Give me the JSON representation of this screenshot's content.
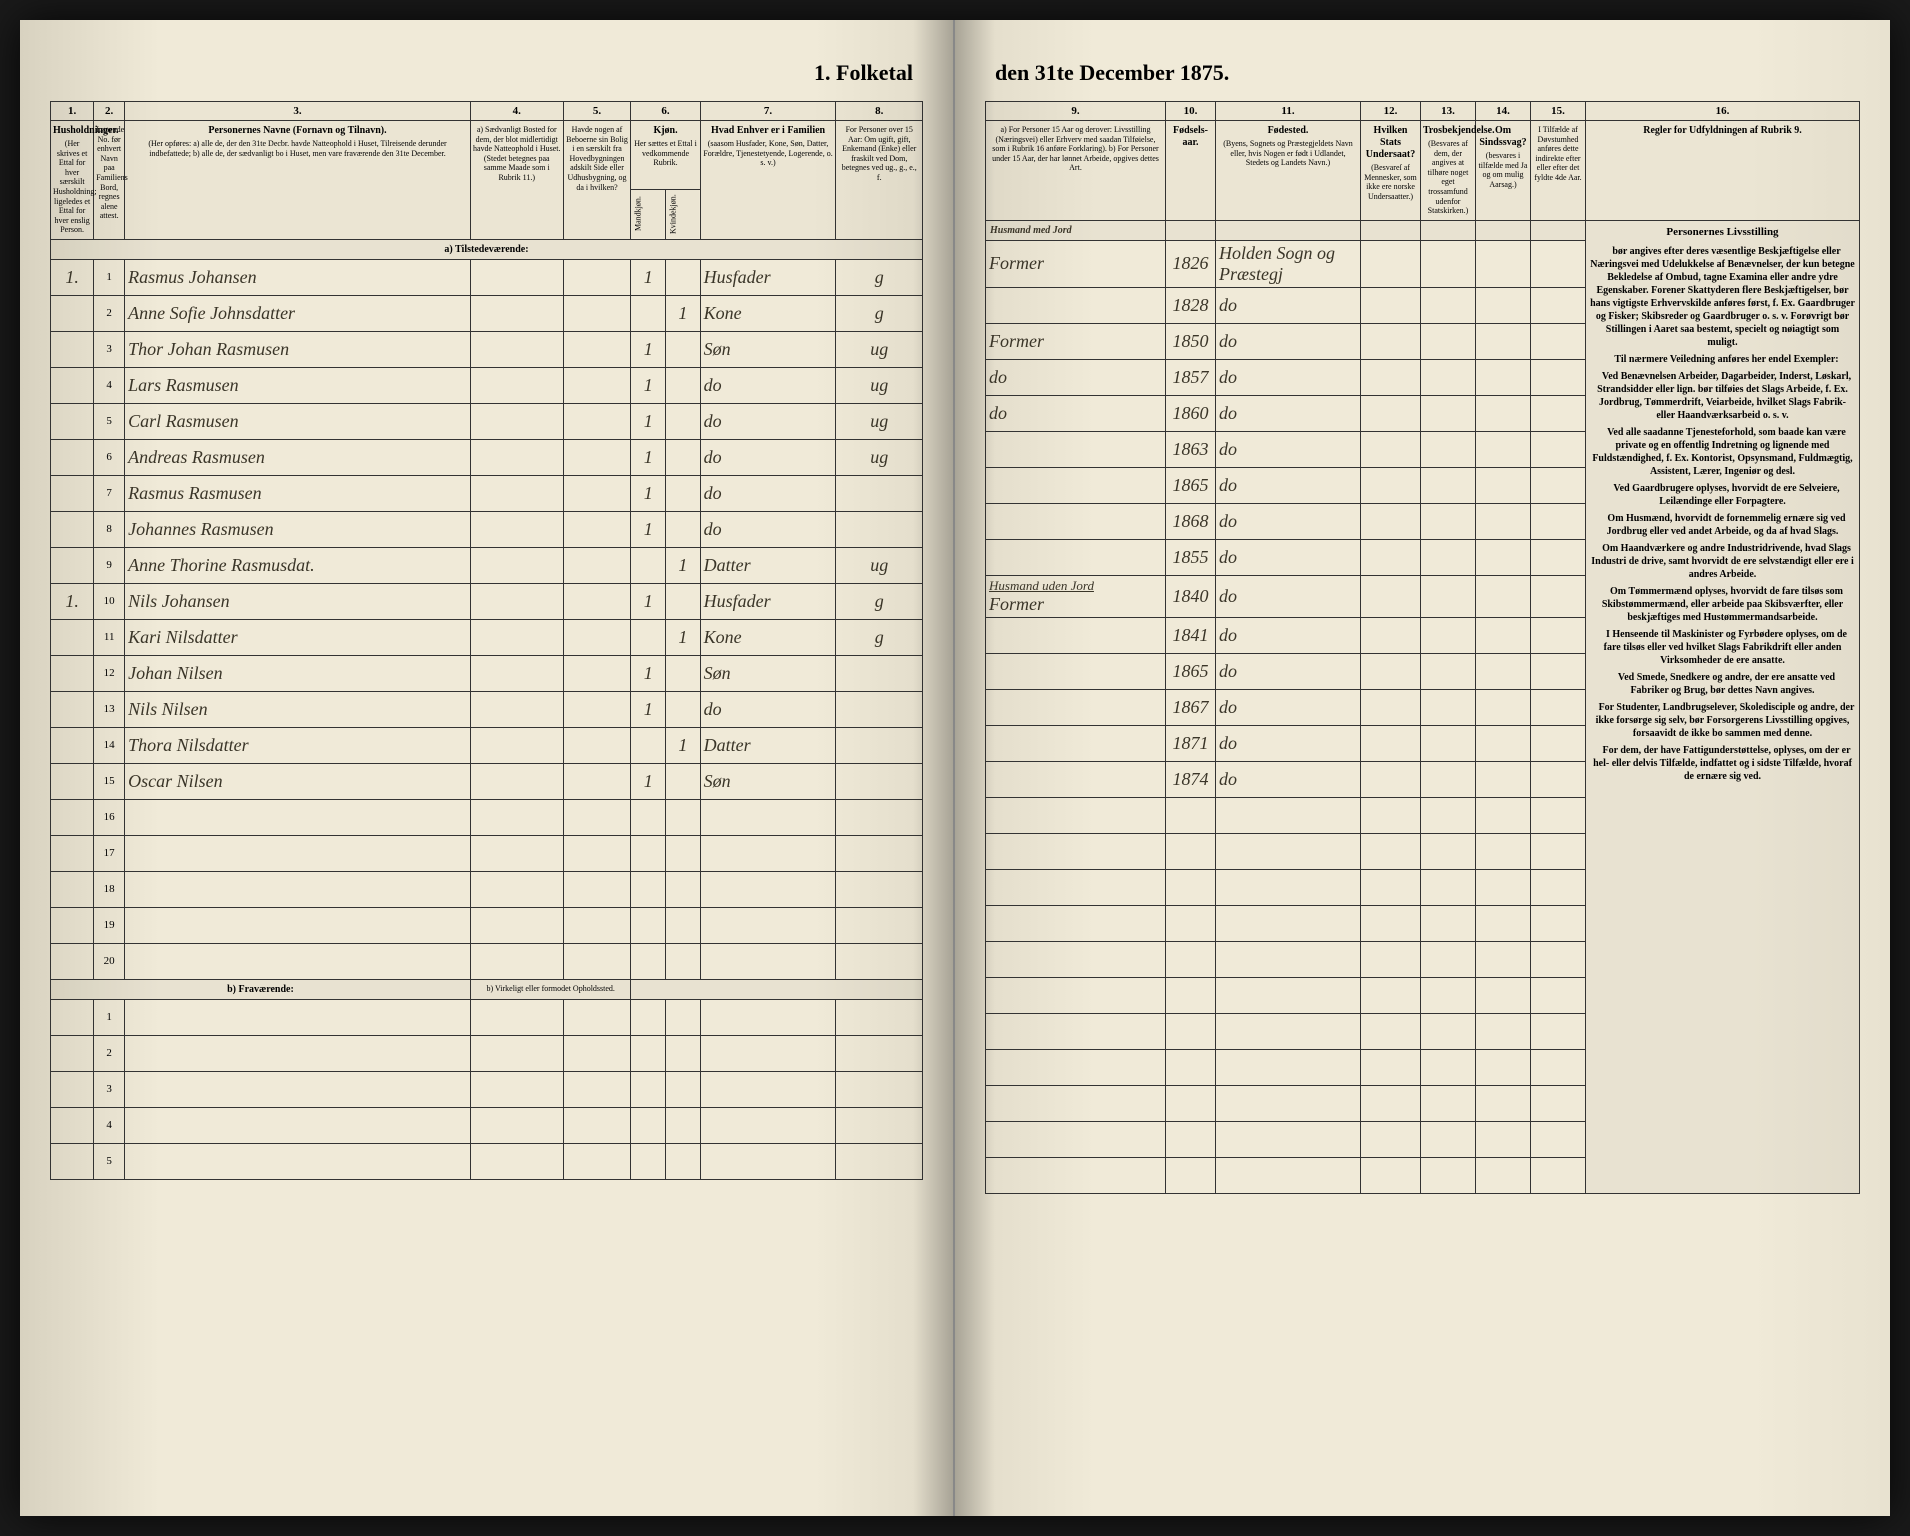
{
  "title_left": "1. Folketal",
  "title_right": "den 31te December 1875.",
  "columns": {
    "c1": "1.",
    "c2": "2.",
    "c3": "3.",
    "c4": "4.",
    "c5": "5.",
    "c6": "6.",
    "c7": "7.",
    "c8": "8.",
    "c9": "9.",
    "c10": "10.",
    "c11": "11.",
    "c12": "12.",
    "c13": "13.",
    "c14": "14.",
    "c15": "15.",
    "c16": "16."
  },
  "headers": {
    "h1": {
      "title": "Husholdninger.",
      "text": "(Her skrives et Ettal for hver særskilt Husholdning; ligeledes et Ettal for hver enslig Person."
    },
    "h2": {
      "text": "Løpende No. før enhvert Navn paa Familiens Bord, regnes alene attest."
    },
    "h3": {
      "title": "Personernes Navne (Fornavn og Tilnavn).",
      "text": "(Her opføres: a) alle de, der den 31te Decbr. havde Natteophold i Huset, Tilreisende derunder indbefattede; b) alle de, der sædvanligt bo i Huset, men vare fraværende den 31te December."
    },
    "h4": {
      "text": "a) Sædvanligt Bosted for dem, der blot midlertidigt havde Natteophold i Huset. (Stedet betegnes paa samme Maade som i Rubrik 11.)"
    },
    "h5": {
      "text": "Havde nogen af Beboerne sin Bolig i en særskilt fra Hovedbygningen adskilt Side eller Udhusbygning, og da i hvilken?"
    },
    "h6": {
      "title": "Kjøn.",
      "text": "Her sættes et Ettal i vedkommende Rubrik."
    },
    "h6a": "Mandkjøn.",
    "h6b": "Kvindekjøn.",
    "h7": {
      "title": "Hvad Enhver er i Familien",
      "text": "(saasom Husfader, Kone, Søn, Datter, Forældre, Tjenestetyende, Logerende, o. s. v.)"
    },
    "h8": {
      "text": "For Personer over 15 Aar: Om ugift, gift, Enkemand (Enke) eller fraskilt ved Dom, betegnes ved ug., g., e., f."
    },
    "h9": {
      "text": "a) For Personer 15 Aar og derover: Livsstilling (Næringsvei) eller Erhverv med saadan Tilføielse, som i Rubrik 16 anføre Forklaring). b) For Personer under 15 Aar, der har lønnet Arbeide, opgives dettes Art."
    },
    "h10": {
      "title": "Fødsels-aar."
    },
    "h11": {
      "title": "Fødested.",
      "text": "(Byens, Sognets og Præstegjeldets Navn eller, hvis Nogen er født i Udlandet, Stedets og Landets Navn.)"
    },
    "h12": {
      "title": "Hvilken Stats Undersaat?",
      "text": "(Besvareſ af Mennesker, som ikke ere norske Undersaatter.)"
    },
    "h13": {
      "title": "Trosbekjendelse.",
      "text": "(Besvares af dem, der angives at tilhøre noget eget trossamfund udenfor Statskirken.)"
    },
    "h14": {
      "title": "Om Sindssvag?",
      "text": "(besvares i tilfælde med Ja og om mulig Aarsag.)"
    },
    "h15": {
      "text": "I Tilfælde af Døvstumhed anføres dette indirekte efter eller efter det fyldte 4de Aar."
    },
    "h16": {
      "title": "Regler for Udfyldningen af Rubrik 9."
    }
  },
  "section_a": "a) Tilstedeværende:",
  "section_a_right": "Husmand med Jord",
  "section_b": "b) Fraværende:",
  "section_b_col4": "b) Virkeligt eller formodet Opholdssted.",
  "rows": [
    {
      "n": "1",
      "h": "1.",
      "name": "Rasmus Johansen",
      "mk": "1",
      "kk": "",
      "fam": "Husfader",
      "civ": "g",
      "occ": "Former",
      "year": "1826",
      "place": "Holden Sogn og Præstegj"
    },
    {
      "n": "2",
      "h": "",
      "name": "Anne Sofie Johnsdatter",
      "mk": "",
      "kk": "1",
      "fam": "Kone",
      "civ": "g",
      "occ": "",
      "year": "1828",
      "place": "do"
    },
    {
      "n": "3",
      "h": "",
      "name": "Thor Johan Rasmusen",
      "mk": "1",
      "kk": "",
      "fam": "Søn",
      "civ": "ug",
      "occ": "Former",
      "year": "1850",
      "place": "do"
    },
    {
      "n": "4",
      "h": "",
      "name": "Lars Rasmusen",
      "mk": "1",
      "kk": "",
      "fam": "do",
      "civ": "ug",
      "occ": "do",
      "year": "1857",
      "place": "do"
    },
    {
      "n": "5",
      "h": "",
      "name": "Carl Rasmusen",
      "mk": "1",
      "kk": "",
      "fam": "do",
      "civ": "ug",
      "occ": "do",
      "year": "1860",
      "place": "do"
    },
    {
      "n": "6",
      "h": "",
      "name": "Andreas Rasmusen",
      "mk": "1",
      "kk": "",
      "fam": "do",
      "civ": "ug",
      "occ": "",
      "year": "1863",
      "place": "do"
    },
    {
      "n": "7",
      "h": "",
      "name": "Rasmus Rasmusen",
      "mk": "1",
      "kk": "",
      "fam": "do",
      "civ": "",
      "occ": "",
      "year": "1865",
      "place": "do"
    },
    {
      "n": "8",
      "h": "",
      "name": "Johannes Rasmusen",
      "mk": "1",
      "kk": "",
      "fam": "do",
      "civ": "",
      "occ": "",
      "year": "1868",
      "place": "do"
    },
    {
      "n": "9",
      "h": "",
      "name": "Anne Thorine Rasmusdat.",
      "mk": "",
      "kk": "1",
      "fam": "Datter",
      "civ": "ug",
      "occ": "",
      "year": "1855",
      "place": "do"
    },
    {
      "n": "10",
      "h": "1.",
      "name": "Nils Johansen",
      "mk": "1",
      "kk": "",
      "fam": "Husfader",
      "civ": "g",
      "occ": "Former",
      "year": "1840",
      "place": "do",
      "header": "Husmand uden Jord"
    },
    {
      "n": "11",
      "h": "",
      "name": "Kari Nilsdatter",
      "mk": "",
      "kk": "1",
      "fam": "Kone",
      "civ": "g",
      "occ": "",
      "year": "1841",
      "place": "do"
    },
    {
      "n": "12",
      "h": "",
      "name": "Johan Nilsen",
      "mk": "1",
      "kk": "",
      "fam": "Søn",
      "civ": "",
      "occ": "",
      "year": "1865",
      "place": "do"
    },
    {
      "n": "13",
      "h": "",
      "name": "Nils Nilsen",
      "mk": "1",
      "kk": "",
      "fam": "do",
      "civ": "",
      "occ": "",
      "year": "1867",
      "place": "do"
    },
    {
      "n": "14",
      "h": "",
      "name": "Thora Nilsdatter",
      "mk": "",
      "kk": "1",
      "fam": "Datter",
      "civ": "",
      "occ": "",
      "year": "1871",
      "place": "do"
    },
    {
      "n": "15",
      "h": "",
      "name": "Oscar Nilsen",
      "mk": "1",
      "kk": "",
      "fam": "Søn",
      "civ": "",
      "occ": "",
      "year": "1874",
      "place": "do"
    }
  ],
  "empty_rows_a": [
    "16",
    "17",
    "18",
    "19",
    "20"
  ],
  "empty_rows_b": [
    "1",
    "2",
    "3",
    "4",
    "5"
  ],
  "instructions": {
    "title": "Personernes Livsstilling",
    "p1": "bør angives efter deres væsentlige Beskjæftigelse eller Næringsvei med Udelukkelse af Benævnelser, der kun betegne Bekledelse af Ombud, tagne Examina eller andre ydre Egenskaber. Forener Skattyderen flere Beskjæftigelser, bør hans vigtigste Erhvervskilde anføres først, f. Ex. Gaardbruger og Fisker; Skibsreder og Gaardbruger o. s. v. Forøvrigt bør Stillingen i Aaret saa bestemt, specielt og nøiagtigt som muligt.",
    "p2": "Til nærmere Veiledning anføres her endel Exempler:",
    "p3": "Ved Benævnelsen Arbeider, Dagarbeider, Inderst, Løskarl, Strandsidder eller lign. bør tilføies det Slags Arbeide, f. Ex. Jordbrug, Tømmerdrift, Veiarbeide, hvilket Slags Fabrik- eller Haandværksarbeid o. s. v.",
    "p4": "Ved alle saadanne Tjenesteforhold, som baade kan være private og en offentlig Indretning og lignende med Fuldstændighed, f. Ex. Kontorist, Opsynsmand, Fuldmægtig, Assistent, Lærer, Ingeniør og desl.",
    "p5": "Ved Gaardbrugere oplyses, hvorvidt de ere Selveiere, Leilændinge eller Forpagtere.",
    "p6": "Om Husmænd, hvorvidt de fornemmelig ernære sig ved Jordbrug eller ved andet Arbeide, og da af hvad Slags.",
    "p7": "Om Haandværkere og andre Industridrivende, hvad Slags Industri de drive, samt hvorvidt de ere selvstændigt eller ere i andres Arbeide.",
    "p8": "Om Tømmermænd oplyses, hvorvidt de fare tilsøs som Skibstømmermænd, eller arbeide paa Skibsværfter, eller beskjæftiges med Hustømmermandsarbeide.",
    "p9": "I Henseende til Maskinister og Fyrbødere oplyses, om de fare tilsøs eller ved hvilket Slags Fabrikdrift eller anden Virksomheder de ere ansatte.",
    "p10": "Ved Smede, Snedkere og andre, der ere ansatte ved Fabriker og Brug, bør dettes Navn angives.",
    "p11": "For Studenter, Landbrugselever, Skoledisciple og andre, der ikke forsørge sig selv, bør Forsorgerens Livsstilling opgives, forsaavidt de ikke bo sammen med denne.",
    "p12": "For dem, der have Fattigunderstøttelse, oplyses, om der er hel- eller delvis Tilfælde, indfattet og i sidste Tilfælde, hvoraf de ernære sig ved."
  }
}
